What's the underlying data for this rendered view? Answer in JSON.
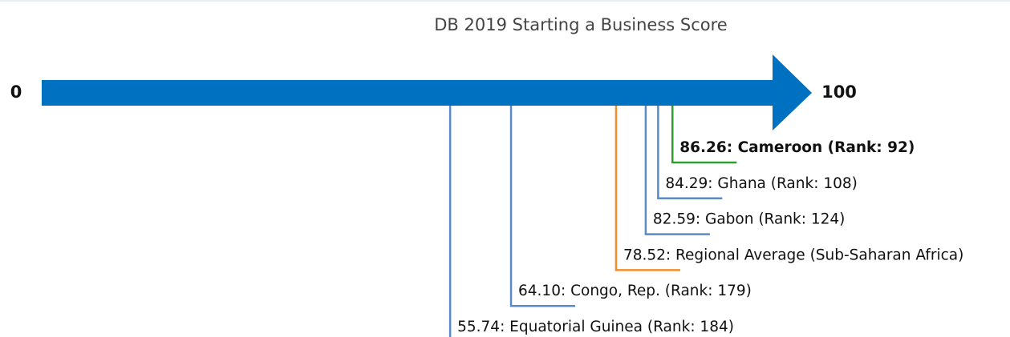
{
  "chart_data": {
    "type": "scale",
    "title": "DB 2019 Starting a Business Score",
    "xlim": [
      0,
      100
    ],
    "xticks": [
      0,
      100
    ],
    "arrow_color": "#0070c0",
    "values": [
      86.26,
      84.29,
      82.59,
      78.52,
      64.1,
      55.74
    ],
    "value_labels": [
      "86.26: Cameroon (Rank: 92)",
      "84.29: Ghana (Rank: 108)",
      "82.59: Gabon (Rank: 124)",
      "78.52: Regional Average (Sub-Saharan Africa)",
      "64.10: Congo, Rep. (Rank: 179)",
      "55.74: Equatorial Guinea (Rank: 184)"
    ],
    "colors": [
      "#2ca02c",
      "#5b8ac6",
      "#5b8ac6",
      "#f28e2b",
      "#5b8ac6",
      "#5b8ac6"
    ],
    "bold": [
      true,
      false,
      false,
      false,
      false,
      false
    ]
  }
}
